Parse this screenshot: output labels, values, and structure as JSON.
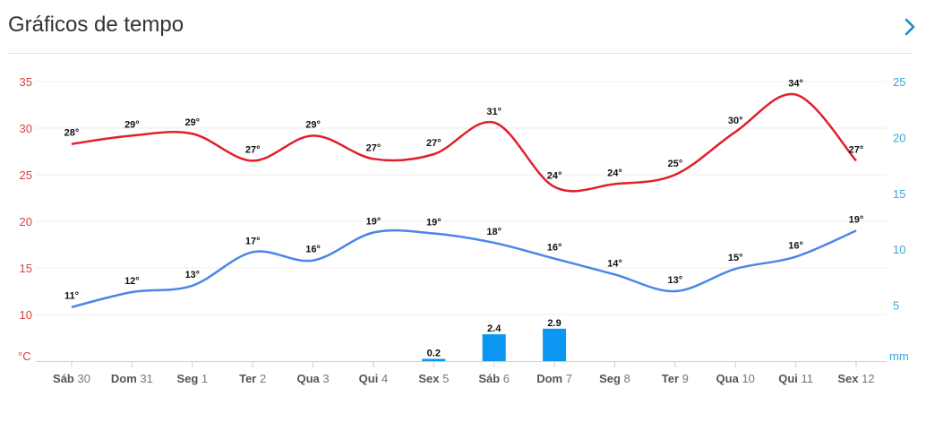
{
  "header": {
    "title": "Gráficos de tempo"
  },
  "colors": {
    "max_line": "#e0202a",
    "min_line": "#4a86e8",
    "precip_bar": "#0b97f1",
    "left_axis": "#d94040",
    "right_axis": "#3da6d9"
  },
  "icons": {
    "next": "chevron-right-icon"
  },
  "chart_data": {
    "type": "line",
    "left_axis": {
      "unit": "°C",
      "ylim": [
        5,
        35
      ],
      "ticks": [
        10,
        15,
        20,
        25,
        30,
        35
      ]
    },
    "right_axis": {
      "unit": "mm",
      "ylim": [
        0,
        25
      ],
      "ticks": [
        5,
        10,
        15,
        20,
        25
      ]
    },
    "categories": [
      {
        "day": "Sáb",
        "date": "30"
      },
      {
        "day": "Dom",
        "date": "31"
      },
      {
        "day": "Seg",
        "date": "1"
      },
      {
        "day": "Ter",
        "date": "2"
      },
      {
        "day": "Qua",
        "date": "3"
      },
      {
        "day": "Qui",
        "date": "4"
      },
      {
        "day": "Sex",
        "date": "5"
      },
      {
        "day": "Sáb",
        "date": "6"
      },
      {
        "day": "Dom",
        "date": "7"
      },
      {
        "day": "Seg",
        "date": "8"
      },
      {
        "day": "Ter",
        "date": "9"
      },
      {
        "day": "Qua",
        "date": "10"
      },
      {
        "day": "Qui",
        "date": "11"
      },
      {
        "day": "Sex",
        "date": "12"
      }
    ],
    "series": [
      {
        "axis": "left",
        "values": [
          28.3,
          29.2,
          29.4,
          26.5,
          29.2,
          26.7,
          27.2,
          30.6,
          23.7,
          24.0,
          25.0,
          29.6,
          33.6,
          26.5
        ],
        "labels": [
          "28°",
          "29°",
          "29°",
          "27°",
          "29°",
          "27°",
          "27°",
          "31°",
          "24°",
          "24°",
          "25°",
          "30°",
          "34°",
          "27°"
        ]
      },
      {
        "axis": "left",
        "values": [
          10.8,
          12.4,
          13.1,
          16.7,
          15.8,
          18.8,
          18.7,
          17.7,
          16.0,
          14.3,
          12.5,
          14.9,
          16.2,
          19.0
        ],
        "labels": [
          "11°",
          "12°",
          "13°",
          "17°",
          "16°",
          "19°",
          "19°",
          "18°",
          "16°",
          "14°",
          "13°",
          "15°",
          "16°",
          "19°"
        ]
      },
      {
        "axis": "right",
        "type": "bar",
        "values": [
          0,
          0,
          0,
          0,
          0,
          0,
          0.2,
          2.4,
          2.9,
          0,
          0,
          0,
          0,
          0
        ],
        "labels": [
          "",
          "",
          "",
          "",
          "",
          "",
          "0.2",
          "2.4",
          "2.9",
          "",
          "",
          "",
          "",
          ""
        ]
      }
    ],
    "grid": true
  }
}
